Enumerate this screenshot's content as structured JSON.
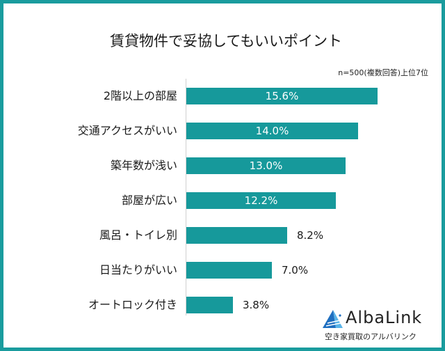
{
  "chart_data": {
    "type": "bar",
    "orientation": "horizontal",
    "title": "賃貸物件で妥協してもいいポイント",
    "subtitle": "n=500(複数回答)上位7位",
    "categories": [
      "2階以上の部屋",
      "交通アクセスがいい",
      "築年数が浅い",
      "部屋が広い",
      "風呂・トイレ別",
      "日当たりがいい",
      "オートロック付き"
    ],
    "values": [
      15.6,
      14.0,
      13.0,
      12.2,
      8.2,
      7.0,
      3.8
    ],
    "value_labels": [
      "15.6%",
      "14.0%",
      "13.0%",
      "12.2%",
      "8.2%",
      "7.0%",
      "3.8%"
    ],
    "xlabel": "",
    "ylabel": "",
    "grid": false,
    "legend": "none",
    "bar_color": "#16999b"
  },
  "logo": {
    "name": "AlbaLink",
    "tagline": "空き家買取のアルバリンク"
  },
  "colors": {
    "border": "#1a9c9e",
    "bar": "#16999b"
  }
}
